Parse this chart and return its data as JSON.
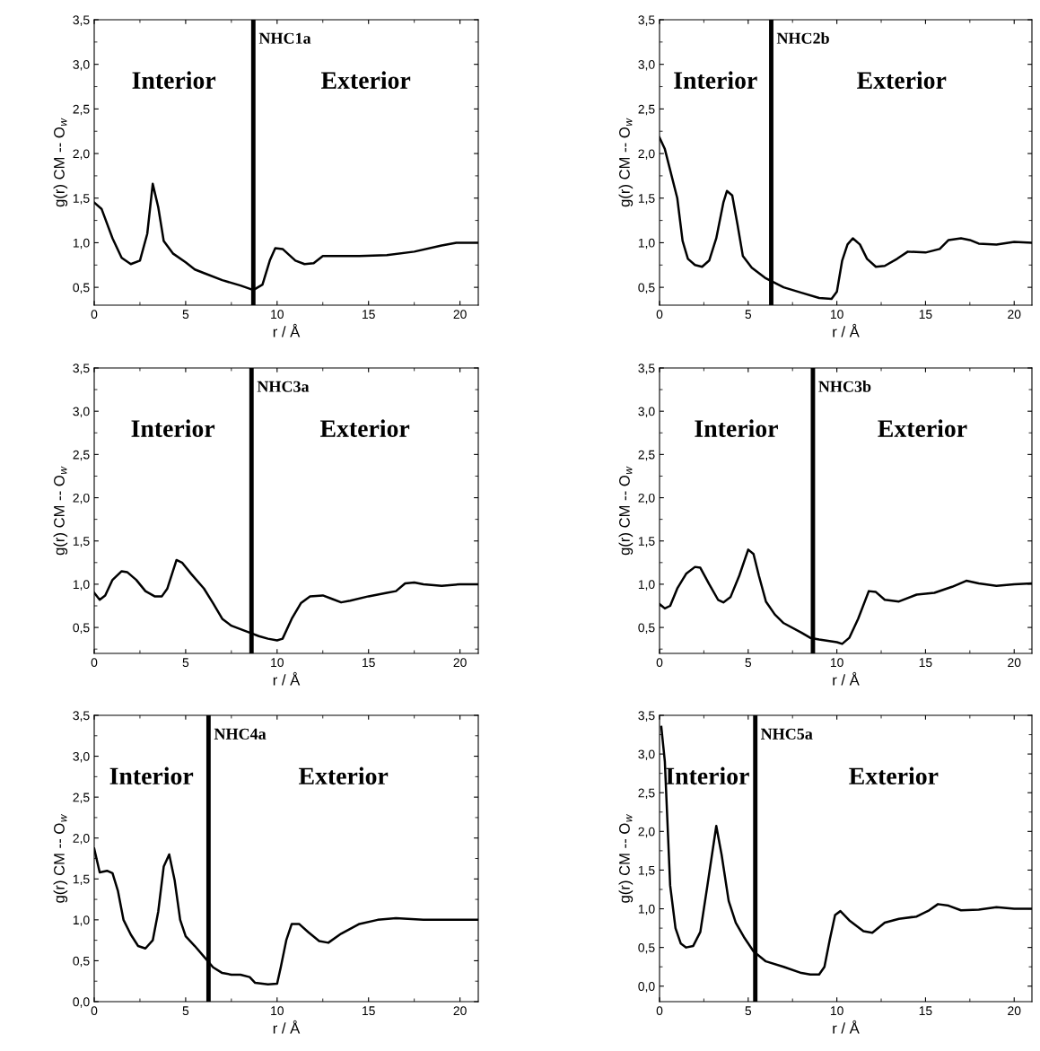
{
  "chart_data": [
    {
      "type": "line",
      "title": "NHC1a",
      "xlabel": "r / Å",
      "ylabel": "g(r) CM -- O$_{w}$",
      "annotations": [
        "Interior",
        "Exterior"
      ],
      "xlim": [
        0,
        21
      ],
      "ylim": [
        0.3,
        3.5
      ],
      "xticks": [
        0,
        5,
        10,
        15,
        20
      ],
      "yticks": [
        {
          "value": 0.5,
          "label": "0,5"
        },
        {
          "value": 1.0,
          "label": "1,0"
        },
        {
          "value": 1.5,
          "label": "1,5"
        },
        {
          "value": 2.0,
          "label": "2,0"
        },
        {
          "value": 2.5,
          "label": "2,5"
        },
        {
          "value": 3.0,
          "label": "3,0"
        },
        {
          "value": 3.5,
          "label": "3,5"
        }
      ],
      "ref_lines": [
        {
          "axis": "x",
          "value": 8.7,
          "color": "#000000"
        }
      ],
      "legend": false,
      "grid": false,
      "series": [
        {
          "color": "#000000",
          "x": [
            0,
            0.4,
            1,
            1.5,
            2,
            2.5,
            2.9,
            3.2,
            3.5,
            3.8,
            4.3,
            5,
            5.5,
            6,
            7,
            8,
            8.7,
            9.2,
            9.6,
            9.9,
            10.3,
            11,
            11.5,
            12,
            12.5,
            13.5,
            14.5,
            16,
            17.5,
            19,
            19.8,
            21
          ],
          "values": [
            1.45,
            1.38,
            1.05,
            0.83,
            0.76,
            0.8,
            1.1,
            1.66,
            1.4,
            1.02,
            0.88,
            0.78,
            0.7,
            0.66,
            0.58,
            0.52,
            0.47,
            0.53,
            0.8,
            0.94,
            0.93,
            0.8,
            0.76,
            0.77,
            0.85,
            0.85,
            0.85,
            0.86,
            0.9,
            0.97,
            1.0,
            1.0
          ]
        }
      ]
    },
    {
      "type": "line",
      "title": "NHC2b",
      "xlabel": "r / Å",
      "ylabel": "g(r) CM -- O$_{w}$",
      "annotations": [
        "Interior",
        "Exterior"
      ],
      "xlim": [
        0,
        21
      ],
      "ylim": [
        0.3,
        3.5
      ],
      "xticks": [
        0,
        5,
        10,
        15,
        20
      ],
      "yticks": [
        {
          "value": 0.5,
          "label": "0,5"
        },
        {
          "value": 1.0,
          "label": "1,0"
        },
        {
          "value": 1.5,
          "label": "1,5"
        },
        {
          "value": 2.0,
          "label": "2,0"
        },
        {
          "value": 2.5,
          "label": "2,5"
        },
        {
          "value": 3.0,
          "label": "3,0"
        },
        {
          "value": 3.5,
          "label": "3,5"
        }
      ],
      "ref_lines": [
        {
          "axis": "x",
          "value": 6.3,
          "color": "#000000"
        }
      ],
      "legend": false,
      "grid": false,
      "series": [
        {
          "color": "#000000",
          "x": [
            0,
            0.3,
            1,
            1.3,
            1.6,
            2,
            2.4,
            2.8,
            3.2,
            3.6,
            3.8,
            4.1,
            4.4,
            4.7,
            5.2,
            6,
            7,
            8,
            9,
            9.7,
            10,
            10.3,
            10.6,
            10.9,
            11.3,
            11.7,
            12.2,
            12.7,
            13.4,
            14,
            15,
            15.8,
            16.3,
            17,
            17.5,
            18,
            19,
            20,
            21
          ],
          "values": [
            2.18,
            2.05,
            1.5,
            1.02,
            0.82,
            0.75,
            0.73,
            0.8,
            1.05,
            1.45,
            1.58,
            1.53,
            1.2,
            0.85,
            0.72,
            0.6,
            0.5,
            0.44,
            0.38,
            0.37,
            0.45,
            0.8,
            0.98,
            1.05,
            0.98,
            0.82,
            0.73,
            0.74,
            0.82,
            0.9,
            0.89,
            0.93,
            1.03,
            1.05,
            1.03,
            0.99,
            0.98,
            1.01,
            1.0
          ]
        }
      ]
    },
    {
      "type": "line",
      "title": "NHC3a",
      "xlabel": "r / Å",
      "ylabel": "g(r) CM -- O$_{w}$",
      "annotations": [
        "Interior",
        "Exterior"
      ],
      "xlim": [
        0,
        21
      ],
      "ylim": [
        0.2,
        3.5
      ],
      "xticks": [
        0,
        5,
        10,
        15,
        20
      ],
      "yticks": [
        {
          "value": 0.5,
          "label": "0,5"
        },
        {
          "value": 1.0,
          "label": "1,0"
        },
        {
          "value": 1.5,
          "label": "1,5"
        },
        {
          "value": 2.0,
          "label": "2,0"
        },
        {
          "value": 2.5,
          "label": "2,5"
        },
        {
          "value": 3.0,
          "label": "3,0"
        },
        {
          "value": 3.5,
          "label": "3,5"
        }
      ],
      "ref_lines": [
        {
          "axis": "x",
          "value": 8.6,
          "color": "#000000"
        }
      ],
      "legend": false,
      "grid": false,
      "series": [
        {
          "color": "#000000",
          "x": [
            0,
            0.3,
            0.6,
            1,
            1.5,
            1.8,
            2.3,
            2.8,
            3.3,
            3.7,
            4,
            4.5,
            4.8,
            5.3,
            6,
            6.5,
            7,
            7.5,
            8.5,
            9,
            9.5,
            10,
            10.3,
            10.8,
            11.3,
            11.8,
            12.5,
            13,
            13.5,
            14,
            15,
            16,
            16.5,
            17,
            17.5,
            18,
            19,
            20,
            21
          ],
          "values": [
            0.9,
            0.82,
            0.87,
            1.05,
            1.15,
            1.14,
            1.05,
            0.92,
            0.86,
            0.86,
            0.95,
            1.28,
            1.25,
            1.12,
            0.95,
            0.78,
            0.6,
            0.52,
            0.44,
            0.4,
            0.37,
            0.35,
            0.37,
            0.6,
            0.78,
            0.86,
            0.87,
            0.83,
            0.79,
            0.81,
            0.86,
            0.9,
            0.92,
            1.01,
            1.02,
            1.0,
            0.98,
            1.0,
            1.0
          ]
        }
      ]
    },
    {
      "type": "line",
      "title": "NHC3b",
      "xlabel": "r / Å",
      "ylabel": "g(r) CM -- O$_{w}$",
      "annotations": [
        "Interior",
        "Exterior"
      ],
      "xlim": [
        0,
        21
      ],
      "ylim": [
        0.2,
        3.5
      ],
      "xticks": [
        0,
        5,
        10,
        15,
        20
      ],
      "yticks": [
        {
          "value": 0.5,
          "label": "0,5"
        },
        {
          "value": 1.0,
          "label": "1,0"
        },
        {
          "value": 1.5,
          "label": "1,5"
        },
        {
          "value": 2.0,
          "label": "2,0"
        },
        {
          "value": 2.5,
          "label": "2,5"
        },
        {
          "value": 3.0,
          "label": "3,0"
        },
        {
          "value": 3.5,
          "label": "3,5"
        }
      ],
      "ref_lines": [
        {
          "axis": "x",
          "value": 8.65,
          "color": "#000000"
        }
      ],
      "legend": false,
      "grid": false,
      "series": [
        {
          "color": "#000000",
          "x": [
            0,
            0.3,
            0.6,
            1,
            1.5,
            2,
            2.3,
            2.8,
            3.3,
            3.6,
            4,
            4.5,
            5,
            5.3,
            5.6,
            6,
            6.5,
            7,
            8,
            8.5,
            9,
            10,
            10.3,
            10.7,
            11.2,
            11.8,
            12.2,
            12.7,
            13.5,
            14.5,
            15.5,
            16.5,
            17.3,
            18,
            19,
            20,
            21
          ],
          "values": [
            0.77,
            0.72,
            0.75,
            0.95,
            1.12,
            1.2,
            1.19,
            1.0,
            0.82,
            0.79,
            0.85,
            1.1,
            1.4,
            1.35,
            1.1,
            0.8,
            0.65,
            0.55,
            0.44,
            0.38,
            0.36,
            0.33,
            0.31,
            0.38,
            0.6,
            0.92,
            0.91,
            0.82,
            0.8,
            0.88,
            0.9,
            0.97,
            1.04,
            1.01,
            0.98,
            1.0,
            1.01
          ]
        }
      ]
    },
    {
      "type": "line",
      "title": "NHC4a",
      "xlabel": "r / Å",
      "ylabel": "g(r) CM -- O$_{w}$",
      "annotations": [
        "Interior",
        "Exterior"
      ],
      "xlim": [
        0,
        21
      ],
      "ylim": [
        0.0,
        3.5
      ],
      "xticks": [
        0,
        5,
        10,
        15,
        20
      ],
      "yticks": [
        {
          "value": 0.0,
          "label": "0,0"
        },
        {
          "value": 0.5,
          "label": "0,5"
        },
        {
          "value": 1.0,
          "label": "1,0"
        },
        {
          "value": 1.5,
          "label": "1,5"
        },
        {
          "value": 2.0,
          "label": "2,0"
        },
        {
          "value": 2.5,
          "label": "2,5"
        },
        {
          "value": 3.0,
          "label": "3,0"
        },
        {
          "value": 3.5,
          "label": "3,5"
        }
      ],
      "ref_lines": [
        {
          "axis": "x",
          "value": 6.25,
          "color": "#000000"
        }
      ],
      "legend": false,
      "grid": false,
      "series": [
        {
          "color": "#000000",
          "x": [
            0,
            0.3,
            0.7,
            1,
            1.3,
            1.6,
            2,
            2.4,
            2.8,
            3.2,
            3.5,
            3.8,
            4.1,
            4.4,
            4.7,
            5,
            5.5,
            6,
            6.5,
            7,
            7.5,
            8,
            8.5,
            8.8,
            9.5,
            10,
            10.2,
            10.5,
            10.8,
            11.2,
            11.7,
            12.3,
            12.8,
            13.5,
            14.5,
            15.5,
            16.5,
            18,
            19,
            21
          ],
          "values": [
            1.87,
            1.58,
            1.6,
            1.57,
            1.35,
            1.0,
            0.82,
            0.68,
            0.65,
            0.75,
            1.1,
            1.65,
            1.8,
            1.48,
            1.0,
            0.8,
            0.68,
            0.55,
            0.42,
            0.35,
            0.33,
            0.33,
            0.3,
            0.23,
            0.21,
            0.22,
            0.42,
            0.75,
            0.95,
            0.95,
            0.85,
            0.74,
            0.72,
            0.83,
            0.95,
            1.0,
            1.02,
            1.0,
            1.0,
            1.0
          ]
        }
      ]
    },
    {
      "type": "line",
      "title": "NHC5a",
      "xlabel": "r / Å",
      "ylabel": "g(r) CM -- O$_{w}$",
      "annotations": [
        "Interior",
        "Exterior"
      ],
      "xlim": [
        0,
        21
      ],
      "ylim": [
        -0.2,
        3.5
      ],
      "xticks": [
        0,
        5,
        10,
        15,
        20
      ],
      "yticks": [
        {
          "value": 0.0,
          "label": "0,0"
        },
        {
          "value": 0.5,
          "label": "0,5"
        },
        {
          "value": 1.0,
          "label": "1,0"
        },
        {
          "value": 1.5,
          "label": "1,5"
        },
        {
          "value": 2.0,
          "label": "2,0"
        },
        {
          "value": 2.5,
          "label": "2,5"
        },
        {
          "value": 3.0,
          "label": "3,0"
        },
        {
          "value": 3.5,
          "label": "3,5"
        }
      ],
      "ref_lines": [
        {
          "axis": "x",
          "value": 5.4,
          "color": "#000000"
        }
      ],
      "legend": false,
      "grid": false,
      "series": [
        {
          "color": "#000000",
          "x": [
            0.1,
            0.3,
            0.6,
            0.9,
            1.2,
            1.5,
            1.9,
            2.3,
            2.7,
            3.2,
            3.5,
            3.9,
            4.3,
            4.8,
            5.3,
            6,
            7,
            8,
            8.5,
            9,
            9.3,
            9.6,
            9.9,
            10.2,
            10.7,
            11.5,
            12,
            12.7,
            13.5,
            14.5,
            15.2,
            15.7,
            16.3,
            17,
            18,
            19,
            20,
            21
          ],
          "values": [
            3.35,
            2.9,
            1.3,
            0.75,
            0.55,
            0.5,
            0.52,
            0.7,
            1.3,
            2.07,
            1.7,
            1.1,
            0.82,
            0.62,
            0.45,
            0.32,
            0.25,
            0.17,
            0.15,
            0.15,
            0.25,
            0.6,
            0.92,
            0.97,
            0.85,
            0.71,
            0.69,
            0.82,
            0.87,
            0.9,
            0.98,
            1.06,
            1.04,
            0.98,
            0.99,
            1.02,
            1.0,
            1.0
          ]
        }
      ]
    }
  ]
}
